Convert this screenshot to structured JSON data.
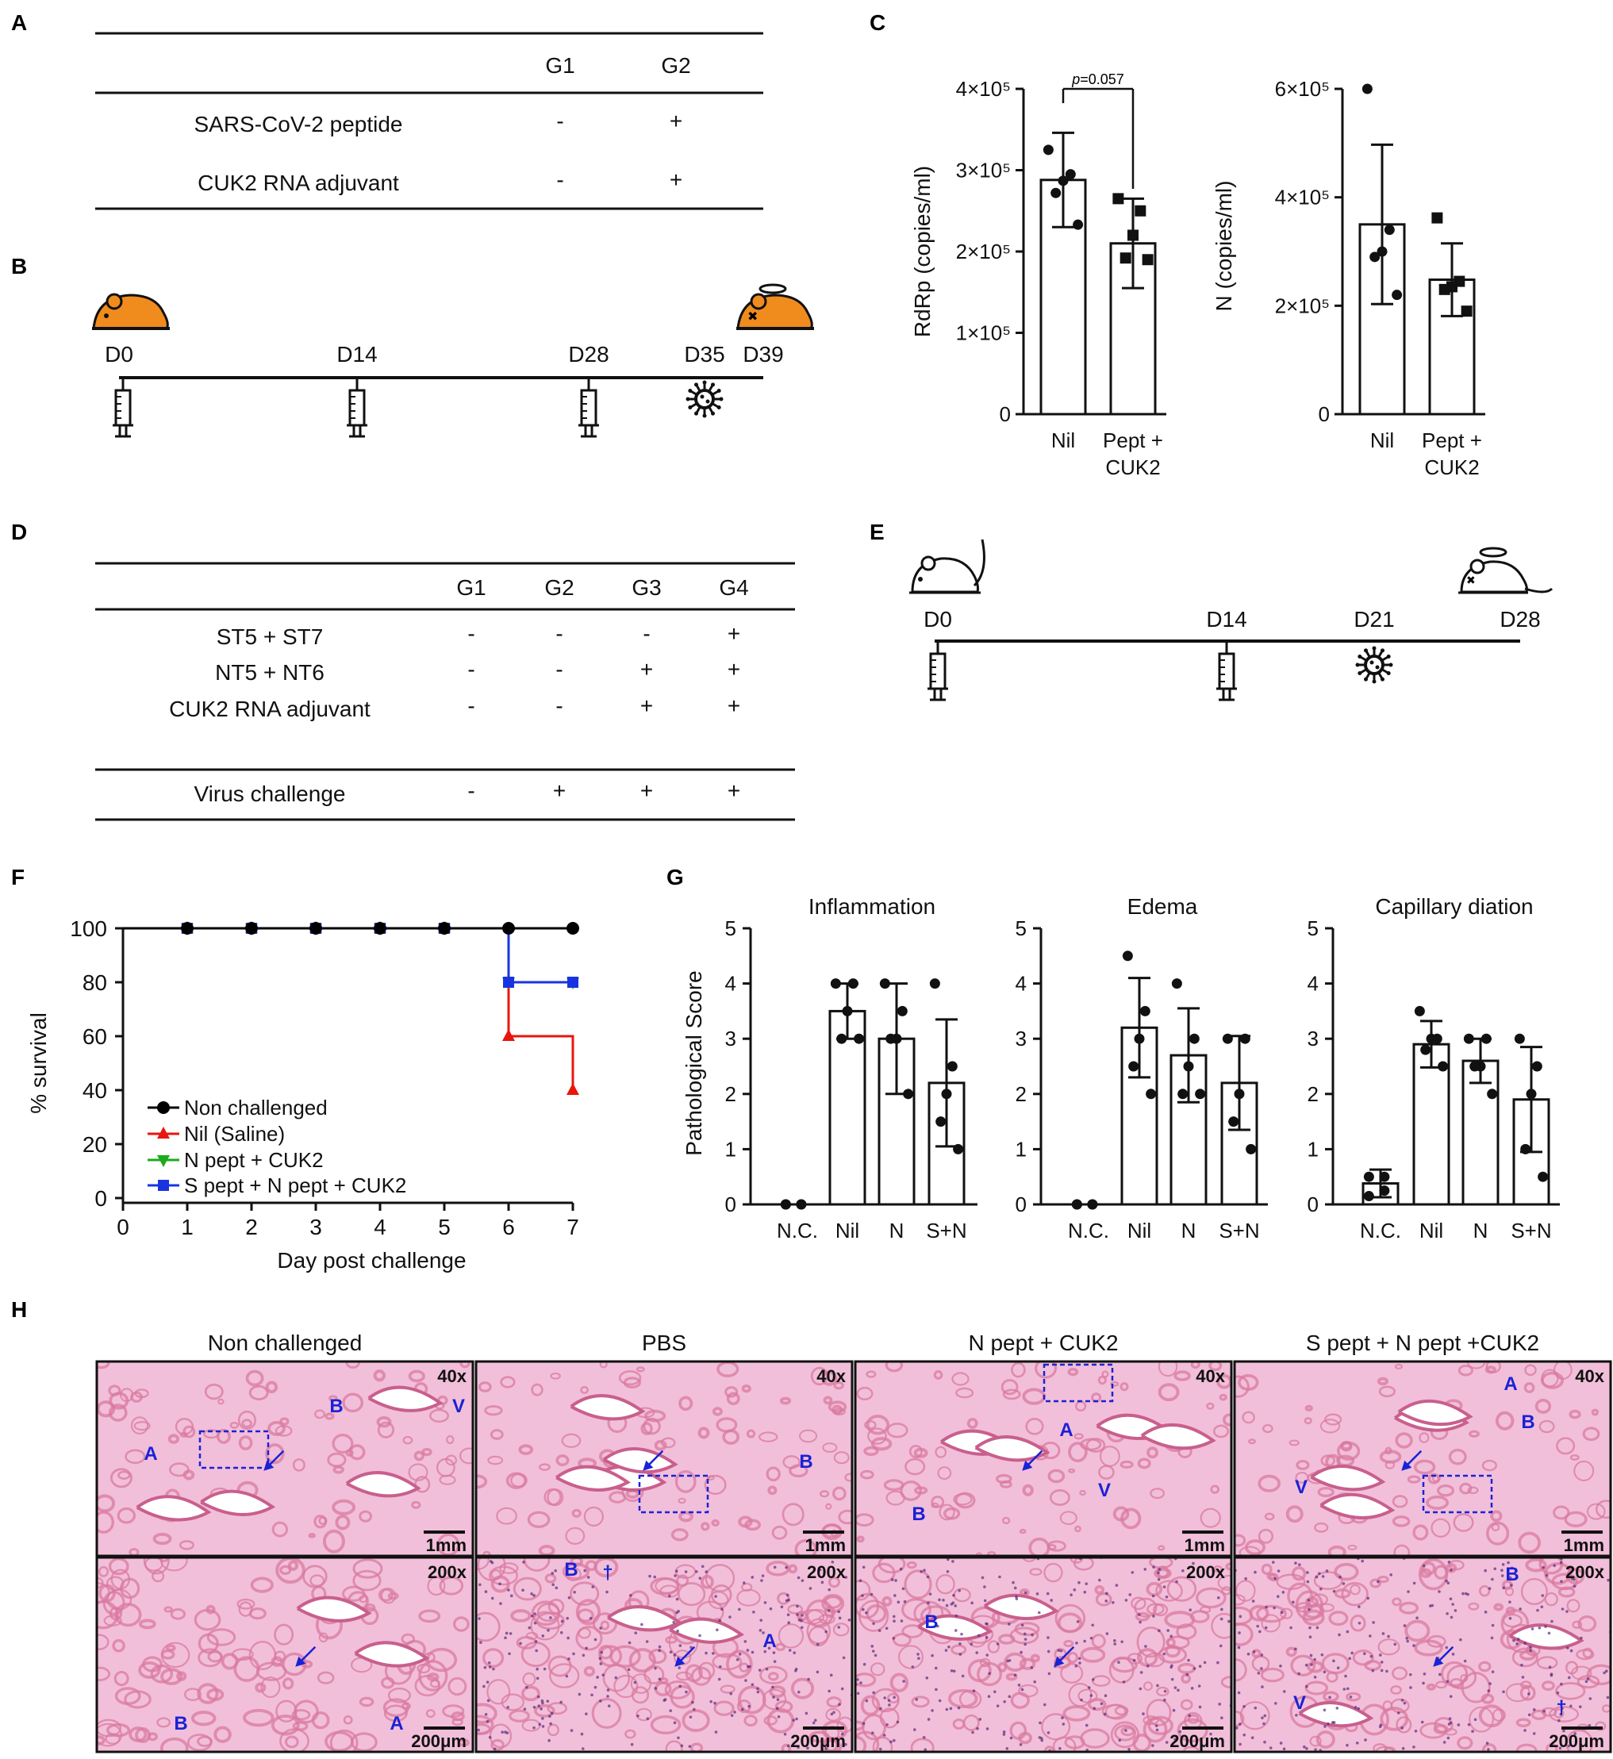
{
  "panels": {
    "A": "A",
    "B": "B",
    "C": "C",
    "D": "D",
    "E": "E",
    "F": "F",
    "G": "G",
    "H": "H"
  },
  "tableA": {
    "headers": [
      "G1",
      "G2"
    ],
    "rows": [
      {
        "label": "SARS-CoV-2 peptide",
        "values": [
          "-",
          "+"
        ]
      },
      {
        "label": "CUK2 RNA adjuvant",
        "values": [
          "-",
          "+"
        ]
      }
    ]
  },
  "timelineB": {
    "days": [
      "D0",
      "D14",
      "D28",
      "D35",
      "D39"
    ],
    "injections": [
      "D0",
      "D14",
      "D28"
    ],
    "challenge": "D35"
  },
  "tableD": {
    "headers": [
      "G1",
      "G2",
      "G3",
      "G4"
    ],
    "rows": [
      {
        "label": "ST5 + ST7",
        "values": [
          "-",
          "-",
          "-",
          "+"
        ]
      },
      {
        "label": "NT5 + NT6",
        "values": [
          "-",
          "-",
          "+",
          "+"
        ]
      },
      {
        "label": "CUK2 RNA adjuvant",
        "values": [
          "-",
          "-",
          "+",
          "+"
        ]
      },
      {
        "label": "Virus challenge",
        "values": [
          "-",
          "+",
          "+",
          "+"
        ]
      }
    ]
  },
  "timelineE": {
    "days": [
      "D0",
      "D14",
      "D21",
      "D28"
    ],
    "injections": [
      "D0",
      "D14"
    ],
    "challenge": "D21"
  },
  "colors": {
    "nonchallenged": "#000000",
    "nil": "#e8160c",
    "npept": "#1aab1a",
    "spept": "#1a33e0",
    "annot": "#1a22d6",
    "he_bg": "#f1bfd9",
    "he_tissue": "#d9799f"
  },
  "chart_data": [
    {
      "id": "C1",
      "type": "bar",
      "ylabel": "RdRp (copies/ml)",
      "yticks": [
        "0",
        "1×10⁵",
        "2×10⁵",
        "3×10⁵",
        "4×10⁵"
      ],
      "ylim": [
        0,
        400000
      ],
      "categories": [
        "Nil",
        "Pept + CUK2"
      ],
      "values": [
        288000,
        210000
      ],
      "errors": [
        58000,
        55000
      ],
      "points": [
        [
          325000,
          295000,
          287000,
          272000,
          233000
        ],
        [
          265000,
          250000,
          220000,
          192000,
          190000
        ]
      ],
      "markers": [
        "circle",
        "square"
      ],
      "annotation": {
        "italic": "p",
        "text": "=0.057"
      }
    },
    {
      "id": "C2",
      "type": "bar",
      "ylabel": "N (copies/ml)",
      "yticks": [
        "0",
        "2×10⁵",
        "4×10⁵",
        "6×10⁵"
      ],
      "ylim": [
        0,
        600000
      ],
      "categories": [
        "Nil",
        "Pept + CUK2"
      ],
      "values": [
        350000,
        248000
      ],
      "errors": [
        147000,
        67000
      ],
      "points": [
        [
          600000,
          340000,
          300000,
          290000,
          220000
        ],
        [
          362000,
          245000,
          235000,
          230000,
          190000
        ]
      ],
      "markers": [
        "circle",
        "square"
      ]
    },
    {
      "id": "F",
      "type": "line",
      "xlabel": "Day post challenge",
      "ylabel": "% survival",
      "xticks": [
        "0",
        "1",
        "2",
        "3",
        "4",
        "5",
        "6",
        "7"
      ],
      "yticks": [
        "0",
        "20",
        "40",
        "60",
        "80",
        "100"
      ],
      "xlim": [
        0,
        7
      ],
      "ylim": [
        0,
        100
      ],
      "series": [
        {
          "name": "Non challenged",
          "marker": "circle",
          "x": [
            1,
            2,
            3,
            4,
            5,
            6,
            7
          ],
          "y": [
            100,
            100,
            100,
            100,
            100,
            100,
            100
          ]
        },
        {
          "name": "Nil (Saline)",
          "marker": "triangle-up",
          "x": [
            1,
            2,
            3,
            4,
            5,
            6,
            7
          ],
          "y": [
            100,
            100,
            100,
            100,
            100,
            60,
            40
          ]
        },
        {
          "name": "N pept + CUK2",
          "marker": "triangle-down",
          "x": [
            1,
            2,
            3,
            4,
            5,
            6,
            7
          ],
          "y": [
            100,
            100,
            100,
            100,
            100,
            80,
            80
          ]
        },
        {
          "name": "S pept + N pept + CUK2",
          "marker": "square",
          "x": [
            1,
            2,
            3,
            4,
            5,
            6,
            7
          ],
          "y": [
            100,
            100,
            100,
            100,
            100,
            80,
            80
          ]
        }
      ],
      "legend": "bottom-left"
    },
    {
      "id": "G1",
      "type": "bar",
      "title": "Inflammation",
      "ylabel": "Pathological Score",
      "yticks": [
        "0",
        "1",
        "2",
        "3",
        "4",
        "5"
      ],
      "ylim": [
        0,
        5
      ],
      "categories": [
        "N.C.",
        "Nil",
        "N",
        "S+N"
      ],
      "values": [
        0,
        3.5,
        3.0,
        2.2
      ],
      "errors": [
        0,
        0.5,
        1.0,
        1.15
      ],
      "points": [
        [
          0,
          0,
          0,
          0
        ],
        [
          4,
          4,
          3.5,
          3,
          3
        ],
        [
          4,
          3.5,
          3,
          3,
          2
        ],
        [
          4,
          2.5,
          2,
          1.5,
          1
        ]
      ]
    },
    {
      "id": "G2",
      "type": "bar",
      "title": "Edema",
      "yticks": [
        "0",
        "1",
        "2",
        "3",
        "4",
        "5"
      ],
      "ylim": [
        0,
        5
      ],
      "categories": [
        "N.C.",
        "Nil",
        "N",
        "S+N"
      ],
      "values": [
        0,
        3.2,
        2.7,
        2.2
      ],
      "errors": [
        0,
        0.9,
        0.85,
        0.85
      ],
      "points": [
        [
          0,
          0,
          0,
          0
        ],
        [
          4.5,
          3.5,
          3,
          2.5,
          2
        ],
        [
          4,
          3,
          2.5,
          2,
          2
        ],
        [
          3,
          3,
          2,
          1.5,
          1
        ]
      ]
    },
    {
      "id": "G3",
      "type": "bar",
      "title": "Capillary diation",
      "yticks": [
        "0",
        "1",
        "2",
        "3",
        "4",
        "5"
      ],
      "ylim": [
        0,
        5
      ],
      "categories": [
        "N.C.",
        "Nil",
        "N",
        "S+N"
      ],
      "values": [
        0.38,
        2.9,
        2.6,
        1.9
      ],
      "errors": [
        0.25,
        0.42,
        0.4,
        0.95
      ],
      "points": [
        [
          0.5,
          0.5,
          0.25,
          0.15
        ],
        [
          3.5,
          3,
          3,
          2.8,
          2.5
        ],
        [
          3,
          3,
          2.5,
          2.5,
          2
        ],
        [
          3,
          2.5,
          2,
          1,
          0.5
        ]
      ]
    }
  ],
  "histology": {
    "titles": [
      "Non challenged",
      "PBS",
      "N pept + CUK2",
      "S pept + N pept +CUK2"
    ],
    "mag_low": "40x",
    "mag_high": "200x",
    "scale_low": "1mm",
    "scale_high": "200μm",
    "markers": {
      "A": "A",
      "B": "B",
      "V": "V",
      "dagger": "†",
      "star": "*"
    }
  }
}
